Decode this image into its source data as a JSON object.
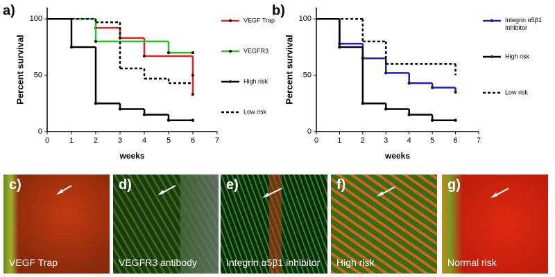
{
  "chart_data": [
    {
      "type": "step",
      "panel_label": "a)",
      "x_label": "weeks",
      "y_label": "Percent survival",
      "xlim": [
        0,
        7
      ],
      "xticks": [
        0,
        1,
        2,
        3,
        4,
        5,
        6,
        7
      ],
      "ylim": [
        0,
        110
      ],
      "yticks": [
        0,
        50,
        100
      ],
      "legend": "right",
      "series": [
        {
          "name": "VEGF Trap",
          "color": "#e8201c",
          "dash": false,
          "x": [
            0,
            2,
            3,
            4,
            6,
            6
          ],
          "values": [
            100,
            92,
            83,
            67,
            50,
            33
          ]
        },
        {
          "name": "VEGFR3",
          "color": "#2db82d",
          "dash": false,
          "x": [
            0,
            2,
            5,
            6
          ],
          "values": [
            100,
            80,
            70,
            70
          ]
        },
        {
          "name": "High risk",
          "color": "#000000",
          "dash": false,
          "x": [
            0,
            1,
            2,
            3,
            4,
            5,
            6
          ],
          "values": [
            100,
            75,
            25,
            20,
            15,
            10,
            10
          ]
        },
        {
          "name": "Low risk",
          "color": "#000000",
          "dash": true,
          "x": [
            0,
            2,
            3,
            4,
            5,
            6
          ],
          "values": [
            100,
            97,
            56,
            47,
            43,
            43
          ]
        }
      ]
    },
    {
      "type": "step",
      "panel_label": "b)",
      "x_label": "weeks",
      "y_label": "Percent survival",
      "xlim": [
        0,
        7
      ],
      "xticks": [
        0,
        1,
        2,
        3,
        4,
        5,
        6,
        7
      ],
      "ylim": [
        0,
        110
      ],
      "yticks": [
        0,
        50,
        100
      ],
      "legend": "right",
      "series": [
        {
          "name": "Integrin α5β1 Inhibitor",
          "color": "#1c1cd0",
          "dash": false,
          "x": [
            0,
            1,
            2,
            3,
            4,
            5,
            6
          ],
          "values": [
            100,
            78,
            65,
            52,
            43,
            39,
            35
          ]
        },
        {
          "name": "High risk",
          "color": "#000000",
          "dash": false,
          "x": [
            0,
            1,
            2,
            3,
            4,
            5,
            6
          ],
          "values": [
            100,
            75,
            25,
            20,
            15,
            10,
            10
          ]
        },
        {
          "name": "Low risk",
          "color": "#000000",
          "dash": true,
          "x": [
            0,
            2,
            3,
            6,
            6
          ],
          "values": [
            100,
            80,
            60,
            60,
            50
          ]
        }
      ]
    }
  ],
  "panels": [
    {
      "label": "c)",
      "caption": "VEGF Trap"
    },
    {
      "label": "d)",
      "caption": "VEGFR3 antibody"
    },
    {
      "label": "e)",
      "caption": "Integrin α5β1 inhibitor"
    },
    {
      "label": "f)",
      "caption": "High risk"
    },
    {
      "label": "g)",
      "caption": "Normal risk"
    }
  ]
}
